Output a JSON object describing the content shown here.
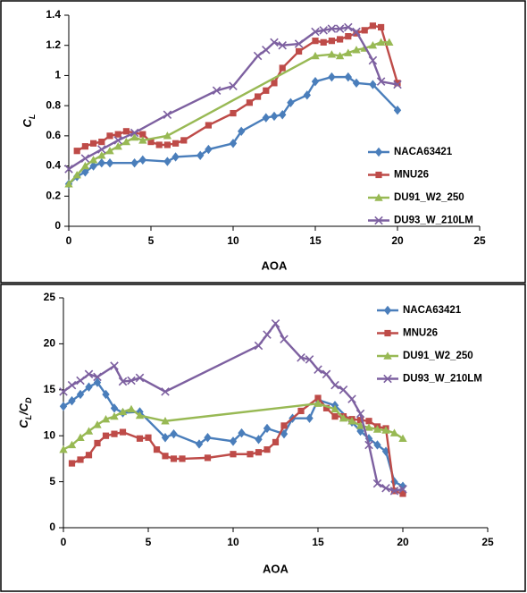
{
  "chart_data": [
    {
      "type": "line",
      "x_label": "AOA",
      "y_label": [
        {
          "text": "C"
        },
        {
          "text": "L",
          "sub": true
        }
      ],
      "xlim": [
        0,
        25
      ],
      "xticks": [
        0,
        5,
        10,
        15,
        20,
        25
      ],
      "ylim": [
        0,
        1.4
      ],
      "yticks": [
        0,
        0.2,
        0.4,
        0.6,
        0.8,
        1,
        1.2,
        1.4
      ],
      "legend": "right",
      "series": [
        {
          "name": "NACA63421",
          "color": "#4a7ebb",
          "marker": "diamond",
          "x": [
            0,
            0.5,
            1,
            1.5,
            2,
            2.5,
            4,
            4.5,
            6,
            6.5,
            8,
            8.5,
            10,
            10.5,
            12,
            12.5,
            13,
            13.5,
            14.5,
            15,
            16,
            17,
            17.5,
            18.5,
            20
          ],
          "values": [
            0.28,
            0.33,
            0.36,
            0.4,
            0.42,
            0.42,
            0.42,
            0.44,
            0.43,
            0.46,
            0.47,
            0.51,
            0.55,
            0.63,
            0.72,
            0.73,
            0.74,
            0.82,
            0.87,
            0.96,
            0.99,
            0.99,
            0.95,
            0.94,
            0.77
          ]
        },
        {
          "name": "MNU26",
          "color": "#be4b48",
          "marker": "square",
          "x": [
            0.5,
            1,
            1.5,
            2,
            2.5,
            3,
            3.5,
            4.5,
            5,
            5.5,
            6,
            6.5,
            7,
            8.5,
            10,
            11,
            11.5,
            12,
            12.5,
            13,
            14,
            15,
            15.5,
            16,
            16.5,
            17,
            17.5,
            18,
            18.5,
            19,
            20
          ],
          "values": [
            0.5,
            0.53,
            0.55,
            0.56,
            0.6,
            0.61,
            0.63,
            0.61,
            0.56,
            0.54,
            0.54,
            0.55,
            0.57,
            0.67,
            0.75,
            0.82,
            0.86,
            0.9,
            0.95,
            1.05,
            1.16,
            1.23,
            1.22,
            1.23,
            1.24,
            1.26,
            1.28,
            1.3,
            1.33,
            1.32,
            0.95
          ]
        },
        {
          "name": "DU91_W2_250",
          "color": "#98b954",
          "marker": "triangle",
          "x": [
            0,
            0.5,
            1,
            1.5,
            2,
            2.5,
            3,
            3.5,
            4,
            4.5,
            6,
            15,
            16,
            16.5,
            17,
            17.5,
            18,
            18.5,
            19,
            19.5
          ],
          "values": [
            0.28,
            0.34,
            0.4,
            0.44,
            0.47,
            0.5,
            0.53,
            0.56,
            0.59,
            0.57,
            0.6,
            1.13,
            1.14,
            1.13,
            1.15,
            1.17,
            1.18,
            1.2,
            1.22,
            1.22
          ]
        },
        {
          "name": "DU93_W_210LM",
          "color": "#7d60a0",
          "marker": "x",
          "x": [
            0,
            1,
            2,
            3,
            4,
            6,
            9,
            10,
            11.5,
            12,
            12.5,
            13,
            14,
            15,
            15.5,
            16,
            16.5,
            17,
            17.5,
            18.5,
            19,
            20
          ],
          "values": [
            0.38,
            0.45,
            0.51,
            0.57,
            0.62,
            0.74,
            0.9,
            0.93,
            1.13,
            1.17,
            1.22,
            1.2,
            1.21,
            1.29,
            1.3,
            1.31,
            1.31,
            1.32,
            1.29,
            1.1,
            0.96,
            0.94
          ]
        }
      ]
    },
    {
      "type": "line",
      "x_label": "AOA",
      "y_label": [
        {
          "text": "C"
        },
        {
          "text": "L",
          "sub": true
        },
        {
          "text": "/C"
        },
        {
          "text": "D",
          "sub": true
        }
      ],
      "xlim": [
        0,
        25
      ],
      "xticks": [
        0,
        5,
        10,
        15,
        20,
        25
      ],
      "ylim": [
        0,
        25
      ],
      "yticks": [
        0,
        5,
        10,
        15,
        20,
        25
      ],
      "legend": "upper right",
      "series": [
        {
          "name": "NACA63421",
          "color": "#4a7ebb",
          "marker": "diamond",
          "x": [
            0,
            0.5,
            1,
            1.5,
            2,
            2.5,
            3,
            3.5,
            4.5,
            6,
            6.5,
            8,
            8.5,
            10,
            10.5,
            11.5,
            12,
            13,
            13.5,
            14.5,
            15,
            16,
            17,
            17.5,
            18,
            18.5,
            19,
            19.5,
            20
          ],
          "values": [
            13.2,
            13.8,
            14.5,
            15.3,
            15.8,
            14.5,
            13,
            12.5,
            12.6,
            9.8,
            10.2,
            9.1,
            9.8,
            9.4,
            10.3,
            9.6,
            10.8,
            10.2,
            11.9,
            11.9,
            13.9,
            13.3,
            11.5,
            10.5,
            9.7,
            9,
            8.3,
            5,
            4.5
          ]
        },
        {
          "name": "MNU26",
          "color": "#be4b48",
          "marker": "square",
          "x": [
            0.5,
            1,
            1.5,
            2,
            2.5,
            3,
            3.5,
            4.5,
            5,
            5.5,
            6,
            6.5,
            7,
            8.5,
            10,
            11,
            11.5,
            12,
            12.5,
            13,
            14,
            15,
            15.5,
            16,
            16.5,
            17,
            17.5,
            18,
            18.5,
            19,
            19.5,
            20
          ],
          "values": [
            7,
            7.4,
            7.9,
            9.2,
            10,
            10.2,
            10.4,
            9.7,
            9.8,
            8.5,
            7.8,
            7.5,
            7.5,
            7.6,
            8,
            8,
            8.2,
            8.5,
            9.3,
            11.1,
            12.7,
            14.1,
            13,
            12.1,
            12.1,
            11.8,
            11.7,
            11.6,
            11,
            10.8,
            4,
            3.7
          ]
        },
        {
          "name": "DU91_W2_250",
          "color": "#98b954",
          "marker": "triangle",
          "x": [
            0,
            0.5,
            1,
            1.5,
            2,
            2.5,
            3,
            3.5,
            4,
            4.5,
            6,
            15,
            16,
            16.5,
            17,
            17.5,
            18,
            18.5,
            19,
            19.5,
            20
          ],
          "values": [
            8.5,
            9,
            9.8,
            10.5,
            11.2,
            11.8,
            12.1,
            12.6,
            12.9,
            12.2,
            11.6,
            13.5,
            12.9,
            11.9,
            11.6,
            11.1,
            10.9,
            10.7,
            10.6,
            10.3,
            9.7
          ]
        },
        {
          "name": "DU93_W_210LM",
          "color": "#7d60a0",
          "marker": "x",
          "x": [
            0,
            0.5,
            1,
            1.5,
            2,
            3,
            3.5,
            4,
            4.5,
            6,
            11.5,
            12,
            12.5,
            13,
            14,
            14.5,
            15,
            15.5,
            16,
            16.5,
            17,
            17.5,
            18,
            18.5,
            19,
            19.5,
            20
          ],
          "values": [
            14.8,
            15.5,
            16,
            16.7,
            16.4,
            17.6,
            15.9,
            16,
            16.3,
            14.8,
            19.8,
            21,
            22.2,
            20.5,
            18.5,
            18.3,
            17.2,
            16.7,
            15.5,
            15,
            14,
            12.4,
            9,
            4.8,
            4.3,
            4,
            4.2
          ]
        }
      ]
    }
  ]
}
